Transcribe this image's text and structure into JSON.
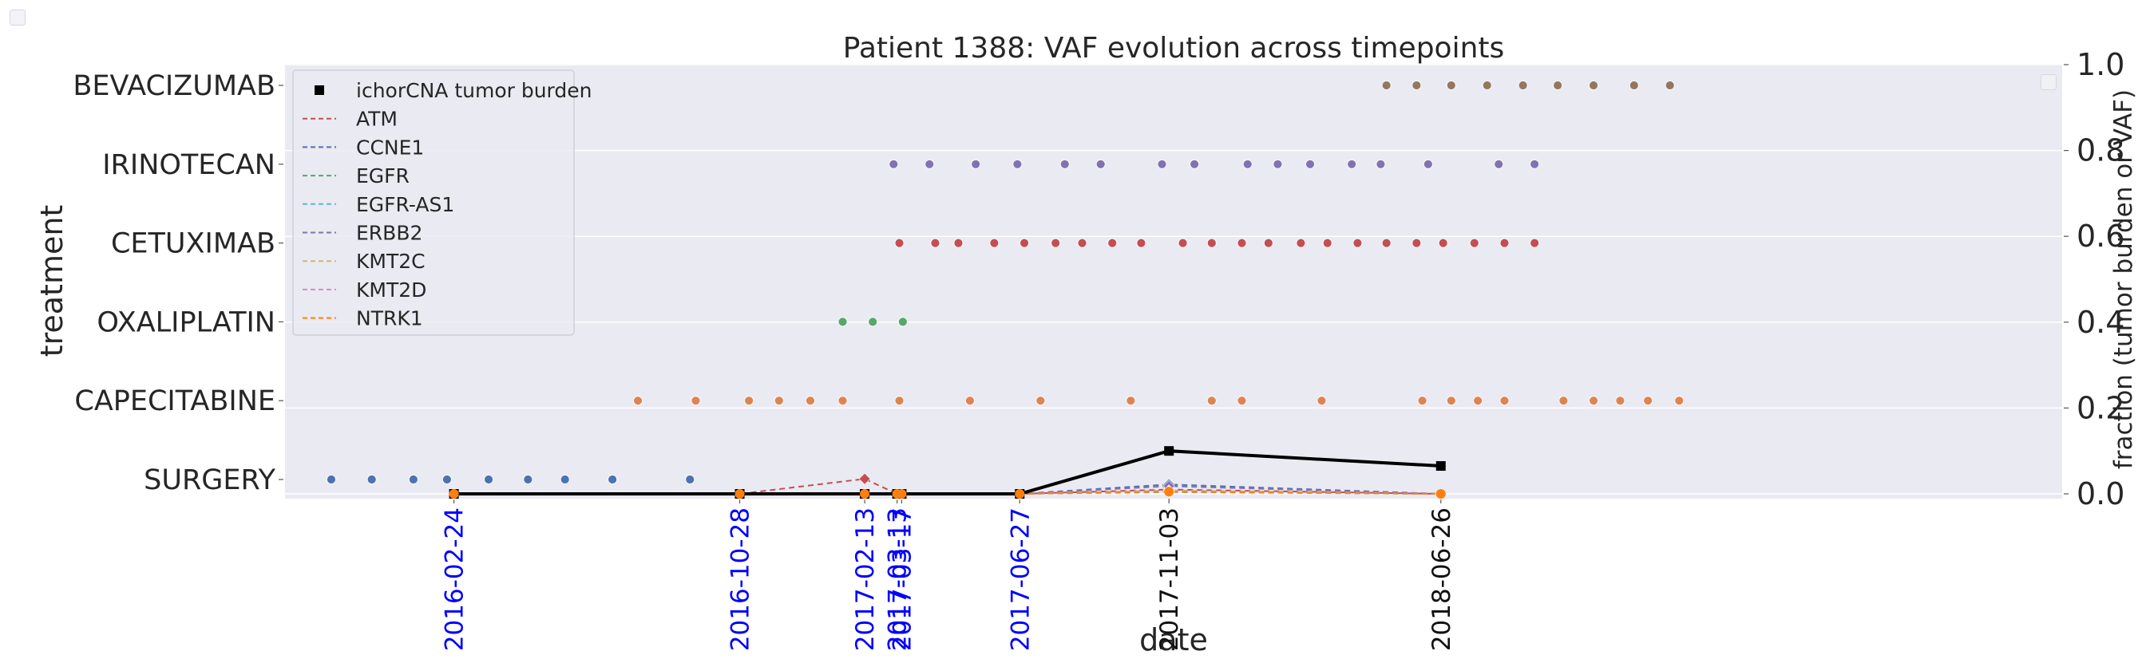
{
  "chart_data": {
    "type": "scatter",
    "title": "Patient 1388: VAF evolution across timepoints",
    "xlabel": "date",
    "ylabel_left": "treatment",
    "ylabel_right": "fraction (tumor burden or VAF)",
    "yright_lim": [
      0.0,
      1.0
    ],
    "yright_ticks": [
      "0.0",
      "0.2",
      "0.4",
      "0.6",
      "0.8",
      "1.0"
    ],
    "treatments": [
      "SURGERY",
      "CAPECITABINE",
      "OXALIPLATIN",
      "CETUXIMAB",
      "IRINOTECAN",
      "BEVACIZUMAB"
    ],
    "treatment_colors": {
      "SURGERY": "#4c72b0",
      "CAPECITABINE": "#dd8452",
      "OXALIPLATIN": "#55a868",
      "CETUXIMAB": "#c44e52",
      "IRINOTECAN": "#8172b3",
      "BEVACIZUMAB": "#937860"
    },
    "x_range": [
      "2015-10-01",
      "2019-12-15"
    ],
    "timepoint_labels": [
      {
        "date": "2016-02-24",
        "color": "#0000ff"
      },
      {
        "date": "2016-10-28",
        "color": "#0000ff"
      },
      {
        "date": "2017-02-13",
        "color": "#0000ff"
      },
      {
        "date": "2017-03-13",
        "color": "#0000ff"
      },
      {
        "date": "2017-03-17",
        "color": "#0000ff"
      },
      {
        "date": "2017-06-27",
        "color": "#0000ff"
      },
      {
        "date": "2017-11-03",
        "color": "#111111"
      },
      {
        "date": "2018-06-26",
        "color": "#111111"
      }
    ],
    "treatment_dates": {
      "SURGERY": [
        "2015-11-10",
        "2015-12-15",
        "2016-01-20",
        "2016-02-18",
        "2016-03-25",
        "2016-04-28",
        "2016-05-30",
        "2016-07-10",
        "2016-09-15"
      ],
      "CAPECITABINE": [
        "2016-08-01",
        "2016-09-20",
        "2016-11-05",
        "2016-12-01",
        "2016-12-28",
        "2017-01-25",
        "2017-03-15",
        "2017-05-15",
        "2017-07-15",
        "2017-10-01",
        "2017-12-10",
        "2018-01-05",
        "2018-03-15",
        "2018-06-10",
        "2018-07-05",
        "2018-07-28",
        "2018-08-20",
        "2018-10-10",
        "2018-11-05",
        "2018-11-28",
        "2018-12-22",
        "2019-01-18"
      ],
      "OXALIPLATIN": [
        "2017-01-25",
        "2017-02-20",
        "2017-03-18"
      ],
      "CETUXIMAB": [
        "2017-03-15",
        "2017-04-15",
        "2017-05-05",
        "2017-06-05",
        "2017-07-01",
        "2017-07-28",
        "2017-08-20",
        "2017-09-15",
        "2017-10-10",
        "2017-11-15",
        "2017-12-10",
        "2018-01-05",
        "2018-01-28",
        "2018-02-25",
        "2018-03-20",
        "2018-04-15",
        "2018-05-10",
        "2018-06-05",
        "2018-06-28",
        "2018-07-25",
        "2018-08-20",
        "2018-09-15"
      ],
      "IRINOTECAN": [
        "2017-03-10",
        "2017-04-10",
        "2017-05-20",
        "2017-06-25",
        "2017-08-05",
        "2017-09-05",
        "2017-10-28",
        "2017-11-25",
        "2018-01-10",
        "2018-02-05",
        "2018-03-05",
        "2018-04-10",
        "2018-05-05",
        "2018-06-15",
        "2018-08-15",
        "2018-09-15"
      ],
      "BEVACIZUMAB": [
        "2018-05-10",
        "2018-06-05",
        "2018-07-05",
        "2018-08-05",
        "2018-09-05",
        "2018-10-05",
        "2018-11-05",
        "2018-12-10",
        "2019-01-10"
      ]
    },
    "ichorCNA_series": {
      "name": "ichorCNA tumor burden",
      "color": "#000000",
      "points": [
        [
          "2016-02-24",
          0.0
        ],
        [
          "2016-10-28",
          0.0
        ],
        [
          "2017-02-13",
          0.0
        ],
        [
          "2017-03-13",
          0.0
        ],
        [
          "2017-03-17",
          0.0
        ],
        [
          "2017-06-27",
          0.0
        ],
        [
          "2017-11-03",
          0.1
        ],
        [
          "2018-06-26",
          0.065
        ]
      ]
    },
    "series": [
      {
        "name": "ATM",
        "color": "#c44e52",
        "values": [
          0.0,
          0.0,
          0.035,
          0.0,
          0.0,
          0.0,
          0.01,
          0.0
        ]
      },
      {
        "name": "CCNE1",
        "color": "#4c72b0",
        "values": [
          0.0,
          0.0,
          0.0,
          0.0,
          0.0,
          0.0,
          0.022,
          0.0
        ]
      },
      {
        "name": "EGFR",
        "color": "#55a868",
        "values": [
          0.0,
          0.0,
          0.0,
          0.0,
          0.0,
          0.0,
          0.005,
          0.0
        ]
      },
      {
        "name": "EGFR-AS1",
        "color": "#64b5cd",
        "values": [
          0.0,
          0.0,
          0.0,
          0.0,
          0.0,
          0.0,
          0.004,
          0.0
        ]
      },
      {
        "name": "ERBB2",
        "color": "#8172b3",
        "values": [
          0.0,
          0.0,
          0.0,
          0.0,
          0.0,
          0.0,
          0.018,
          0.0
        ]
      },
      {
        "name": "KMT2C",
        "color": "#ccb974",
        "values": [
          0.0,
          0.0,
          0.0,
          0.0,
          0.0,
          0.0,
          0.008,
          0.0
        ]
      },
      {
        "name": "KMT2D",
        "color": "#da8bc3",
        "values": [
          0.0,
          0.0,
          0.0,
          0.0,
          0.0,
          0.0,
          0.006,
          0.0
        ]
      },
      {
        "name": "NTRK1",
        "color": "#ff7f0e",
        "values": [
          0.0,
          0.0,
          0.0,
          0.0,
          0.0,
          0.0,
          0.005,
          0.0
        ]
      }
    ],
    "legend_placement": "top-left",
    "grid": true
  }
}
